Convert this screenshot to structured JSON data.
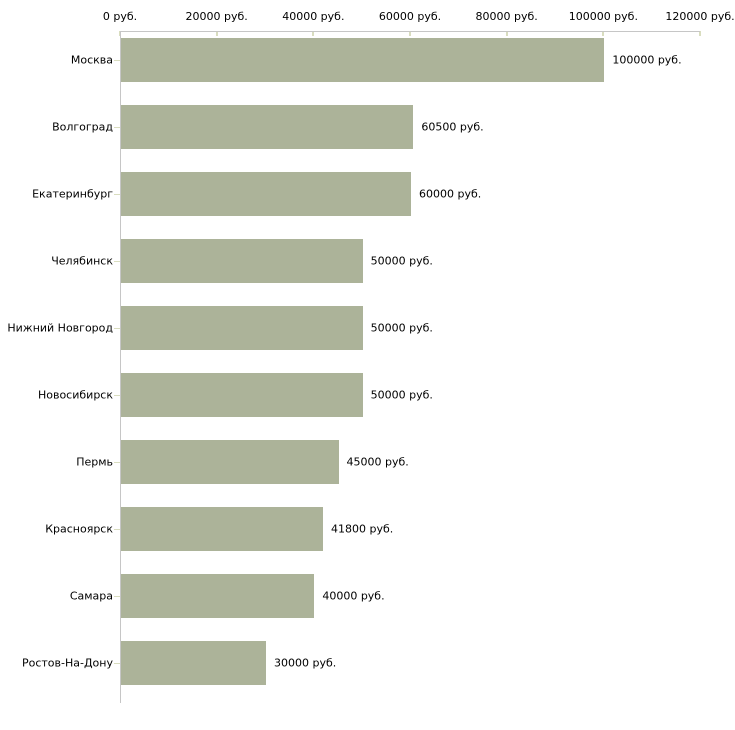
{
  "chart_data": {
    "type": "bar",
    "orientation": "horizontal",
    "title": "",
    "xlabel": "",
    "ylabel": "",
    "xlim": [
      0,
      120000
    ],
    "grid": false,
    "legend": false,
    "categories": [
      "Москва",
      "Волгоград",
      "Екатеринбург",
      "Челябинск",
      "Нижний Новгород",
      "Новосибирск",
      "Пермь",
      "Красноярск",
      "Самара",
      "Ростов-На-Дону"
    ],
    "values": [
      100000,
      60500,
      60000,
      50000,
      50000,
      50000,
      45000,
      41800,
      40000,
      30000
    ],
    "value_labels": [
      "100000 руб.",
      "60500 руб.",
      "60000 руб.",
      "50000 руб.",
      "50000 руб.",
      "50000 руб.",
      "45000 руб.",
      "41800 руб.",
      "40000 руб.",
      "30000 руб."
    ],
    "x_ticks": [
      {
        "value": 0,
        "label": "0 руб."
      },
      {
        "value": 20000,
        "label": "20000 руб."
      },
      {
        "value": 40000,
        "label": "40000 руб."
      },
      {
        "value": 60000,
        "label": "60000 руб."
      },
      {
        "value": 80000,
        "label": "80000 руб."
      },
      {
        "value": 100000,
        "label": "100000 руб."
      },
      {
        "value": 120000,
        "label": "120000 руб."
      }
    ],
    "colors": {
      "bar": "#acb399",
      "axis_line": "#c6c6c6",
      "tick_mark": "#d9ddbf",
      "text": "#000000"
    }
  },
  "layout_hints": {
    "legend_position": "none",
    "value_label_position": "right-of-bar"
  }
}
